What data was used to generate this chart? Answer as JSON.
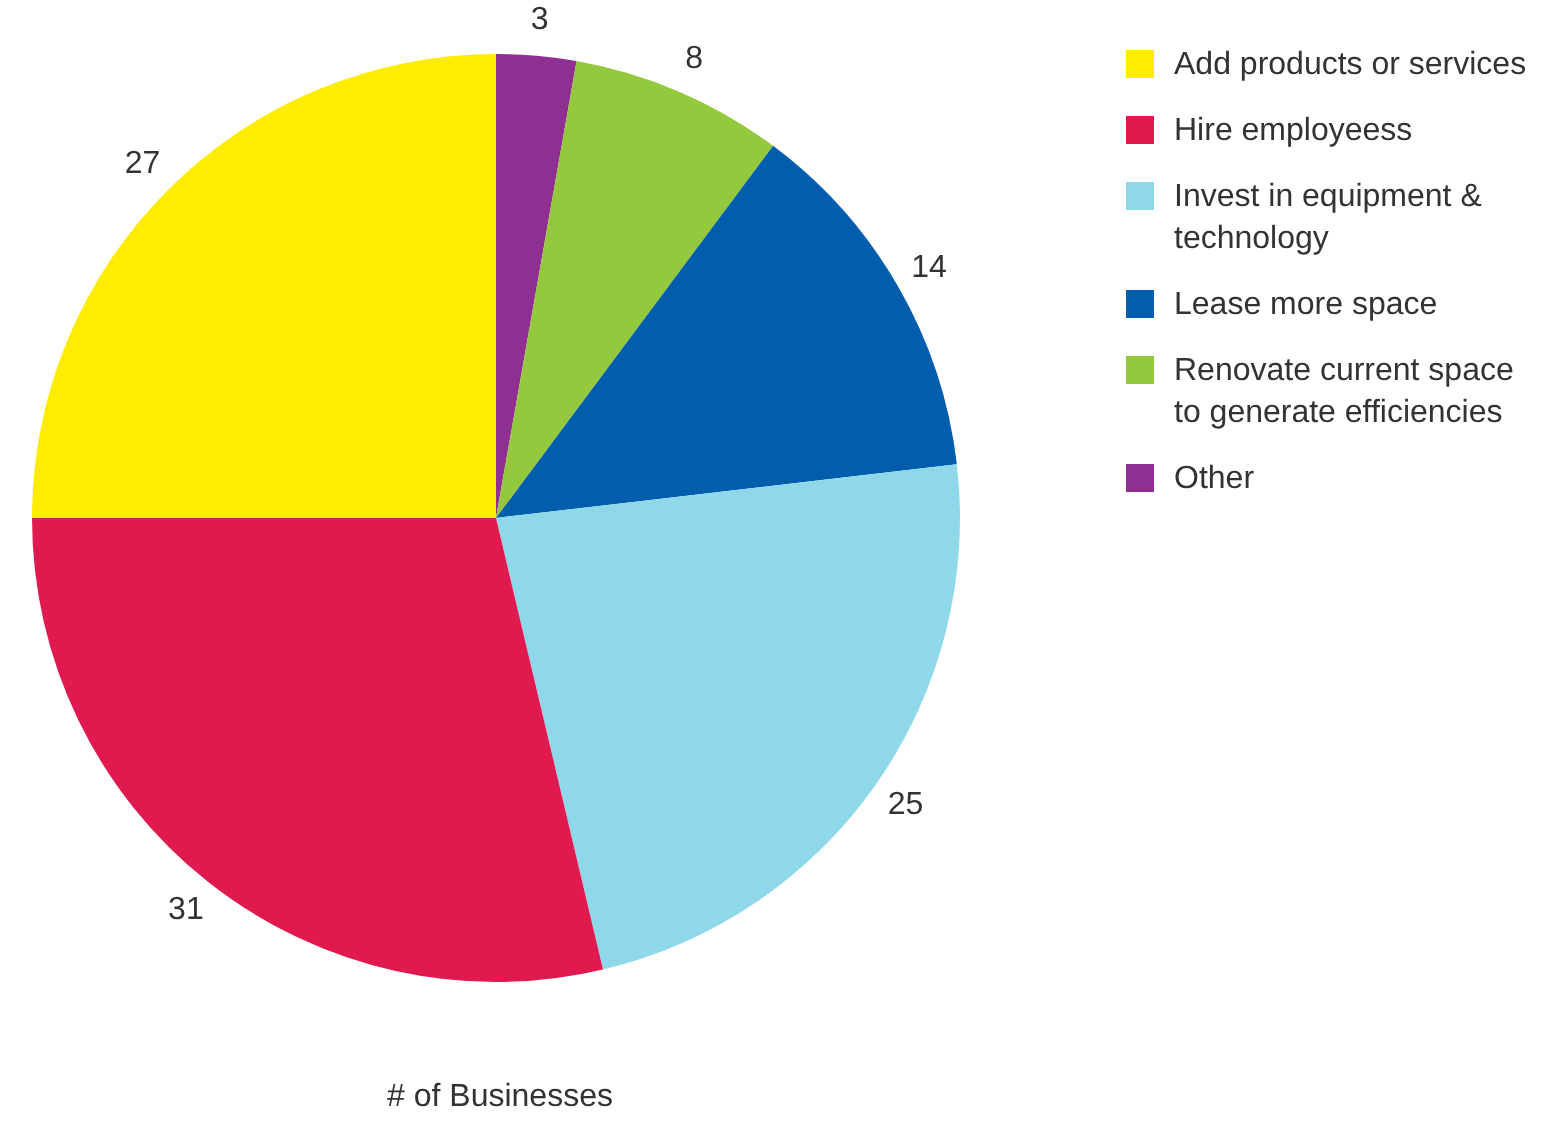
{
  "chart_data": {
    "type": "pie",
    "categories": [
      "Add products or services",
      "Hire employeess",
      "Invest in equipment & technology",
      "Lease more space",
      "Renovate current space to generate efficiencies",
      "Other"
    ],
    "values": [
      27,
      31,
      25,
      14,
      8,
      3
    ],
    "colors": [
      "#ffec00",
      "#e0194f",
      "#8fd8ea",
      "#005ead",
      "#95c93d",
      "#8e2f91"
    ],
    "data_labels": true,
    "legend": "top right",
    "annotations": [
      "# of Businesses"
    ]
  }
}
